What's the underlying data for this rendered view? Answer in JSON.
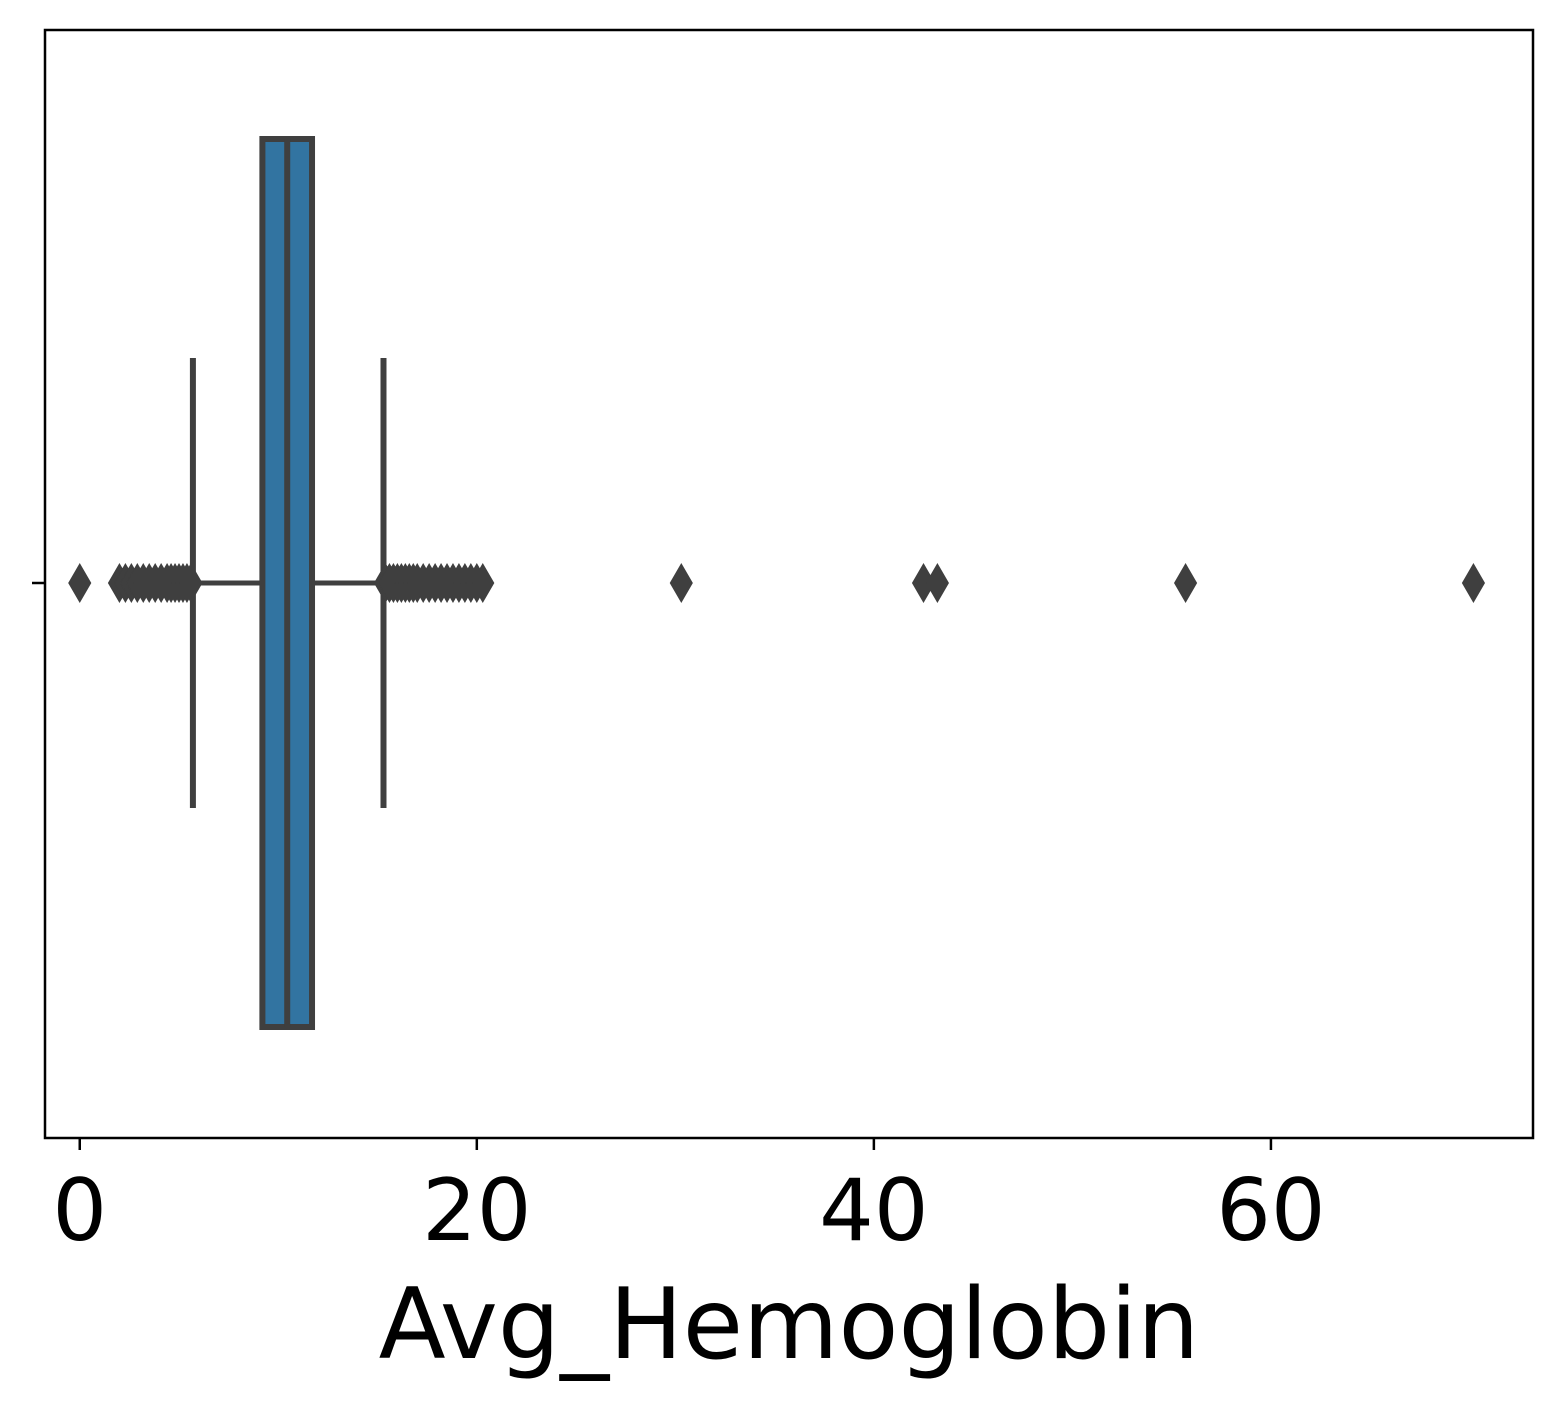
{
  "chart_data": {
    "type": "box",
    "orientation": "horizontal",
    "xlabel": "Avg_Hemoglobin",
    "ylabel": "",
    "xlim": [
      -1.75,
      73.2
    ],
    "x_ticks": [
      0,
      20,
      40,
      60
    ],
    "x_tick_labels": [
      "0",
      "20",
      "40",
      "60"
    ],
    "y_ticks": [
      ""
    ],
    "grid": false,
    "colors": {
      "box_fill": "#3274a1",
      "line": "#3f3f3f",
      "flier": "#3f3f3f",
      "axes": "#000000"
    },
    "box": {
      "whisker_low": 5.7,
      "q1": 9.2,
      "median": 10.45,
      "q3": 11.7,
      "whisker_high": 15.3
    },
    "outliers": [
      0.0,
      2.0,
      2.3,
      2.6,
      2.9,
      3.2,
      3.5,
      3.8,
      4.1,
      4.4,
      4.6,
      4.8,
      5.0,
      5.2,
      5.4,
      5.6,
      15.4,
      15.6,
      15.8,
      16.0,
      16.2,
      16.4,
      16.6,
      16.8,
      17.0,
      17.3,
      17.6,
      17.9,
      18.2,
      18.5,
      18.8,
      19.1,
      19.4,
      19.7,
      20.0,
      20.3,
      30.3,
      42.5,
      43.2,
      55.7,
      70.2
    ]
  }
}
